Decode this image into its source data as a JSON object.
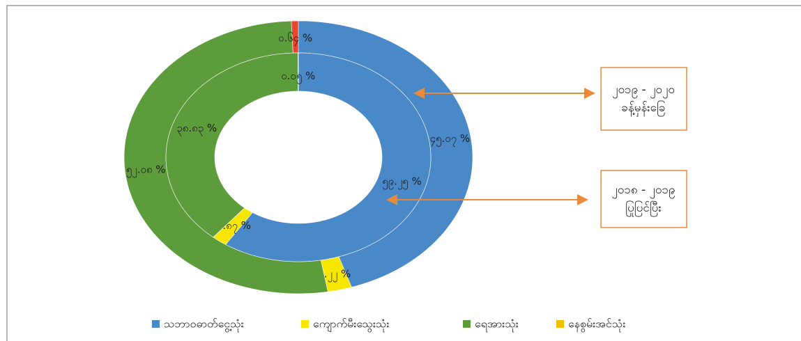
{
  "chart_data": {
    "type": "nested-donut",
    "rings": [
      {
        "label": [
          "၂၀၁၉ - ၂၀၂၀",
          "ခန့်မှန်းခြေ"
        ],
        "values": [
          45.07,
          2.22,
          52.08,
          0.64
        ],
        "value_labels": [
          "၄၅.၀၇ %",
          "၂.၂၂ %",
          "၅၂.၀၈ %",
          "၀.၆၄ %"
        ],
        "colors": [
          "#4a89c8",
          "#f7e600",
          "#5d9c3a",
          "#e8452c"
        ]
      },
      {
        "label": [
          "၂၀၁၈ - ၂၀၁၉",
          "ပြုပြင်ပြီး"
        ],
        "values": [
          59.25,
          1.87,
          38.83,
          0.05
        ],
        "value_labels": [
          "၅၉.၂၅ %",
          "၁.၈၇ %",
          "၃၈.၈၃ %",
          "၀.၀၅ %"
        ],
        "colors": [
          "#4a89c8",
          "#f7e600",
          "#5d9c3a",
          "#f0c000"
        ]
      }
    ],
    "legend": [
      {
        "name": "သဘာဝဓာတ်ငွေ့သုံး",
        "color": "#4a89c8",
        "text_color": "#2f66b0"
      },
      {
        "name": "ကျောက်မီးသွေးသုံး",
        "color": "#f7e600",
        "text_color": "#d9342b"
      },
      {
        "name": "ရေအားသုံး",
        "color": "#5d9c3a",
        "text_color": "#2f6e25"
      },
      {
        "name": "နေစွမ်းအင်သုံး",
        "color": "#f0c000",
        "text_color": "#7030a0"
      }
    ]
  }
}
